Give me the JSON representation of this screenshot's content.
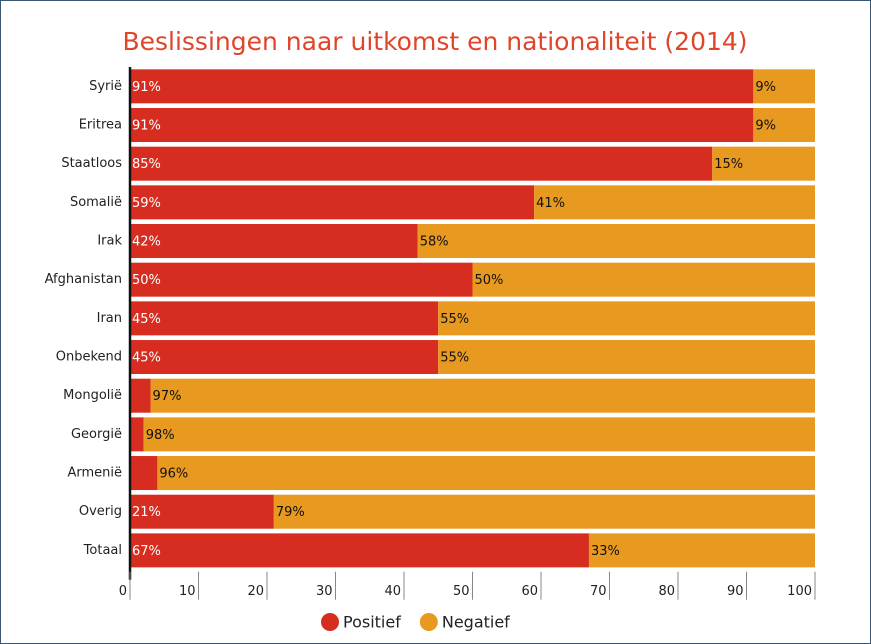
{
  "chart_data": {
    "type": "stacked-barh",
    "title": "Beslissingen naar uitkomst en nationaliteit (2014)",
    "categories": [
      "Syrië",
      "Eritrea",
      "Staatloos",
      "Somalië",
      "Irak",
      "Afghanistan",
      "Iran",
      "Onbekend",
      "Mongolië",
      "Georgië",
      "Armenië",
      "Overig",
      "Totaal"
    ],
    "series": [
      {
        "name": "Positief",
        "color": "#d62d20",
        "values": [
          91,
          91,
          85,
          59,
          42,
          50,
          45,
          45,
          3,
          2,
          4,
          21,
          67
        ],
        "value_labels": [
          "91%",
          "91%",
          "85%",
          "59%",
          "42%",
          "50%",
          "45%",
          "45%",
          null,
          null,
          null,
          "21%",
          "67%"
        ]
      },
      {
        "name": "Negatief",
        "color": "#e8991f",
        "values": [
          9,
          9,
          15,
          41,
          58,
          50,
          55,
          55,
          97,
          98,
          96,
          79,
          33
        ],
        "value_labels": [
          "9%",
          "9%",
          "15%",
          "41%",
          "58%",
          "50%",
          "55%",
          "55%",
          "97%",
          "98%",
          "96%",
          "79%",
          "33%"
        ]
      }
    ],
    "xlim": [
      0,
      100
    ],
    "xticks": [
      0,
      10,
      20,
      30,
      40,
      50,
      60,
      70,
      80,
      90,
      100
    ],
    "legend": "bottom"
  }
}
